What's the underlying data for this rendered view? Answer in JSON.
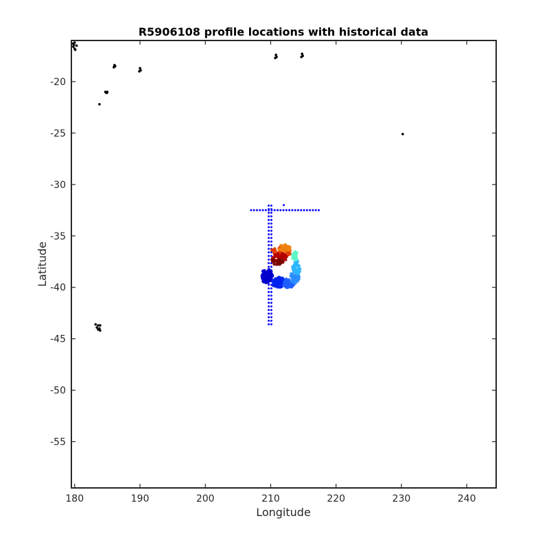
{
  "chart_data": {
    "type": "scatter",
    "title": "R5906108 profile locations with historical data",
    "xlabel": "Longitude",
    "ylabel": "Latitude",
    "xlim": [
      179.5,
      244.5
    ],
    "ylim": [
      -59.5,
      -16
    ],
    "xticks": [
      180,
      190,
      200,
      210,
      220,
      230,
      240
    ],
    "yticks": [
      -55,
      -50,
      -45,
      -40,
      -35,
      -30,
      -25,
      -20
    ],
    "grid": false,
    "legend": "none",
    "colors": {
      "axis": "#262626",
      "land": "#000000",
      "historical": "#0000ff",
      "profile_colormap": [
        "#0000aa",
        "#0022ee",
        "#1f66ff",
        "#2bb6ff",
        "#5ff5c8",
        "#f07f10",
        "#e23a00",
        "#b40000",
        "#7a0000"
      ]
    },
    "land_outlines": [
      {
        "name": "island",
        "points": [
          [
            180.0,
            -16.2
          ],
          [
            179.8,
            -16.6
          ],
          [
            180.1,
            -16.9
          ],
          [
            179.9,
            -16.4
          ],
          [
            180.3,
            -16.5
          ],
          [
            180.0,
            -16.8
          ],
          [
            179.7,
            -16.3
          ]
        ]
      },
      {
        "name": "island",
        "points": [
          [
            186.1,
            -18.4
          ],
          [
            186.0,
            -18.6
          ],
          [
            186.2,
            -18.5
          ]
        ]
      },
      {
        "name": "island",
        "points": [
          [
            190.0,
            -18.7
          ],
          [
            189.9,
            -19.0
          ],
          [
            190.1,
            -18.9
          ]
        ]
      },
      {
        "name": "island",
        "points": [
          [
            184.7,
            -21.0
          ],
          [
            185.0,
            -21.0
          ],
          [
            184.9,
            -21.1
          ]
        ]
      },
      {
        "name": "island",
        "points": [
          [
            183.8,
            -22.2
          ]
        ]
      },
      {
        "name": "island",
        "points": [
          [
            210.8,
            -17.4
          ],
          [
            210.7,
            -17.7
          ],
          [
            210.9,
            -17.6
          ]
        ]
      },
      {
        "name": "island",
        "points": [
          [
            214.8,
            -17.3
          ],
          [
            214.7,
            -17.6
          ],
          [
            214.9,
            -17.5
          ]
        ]
      },
      {
        "name": "island",
        "points": [
          [
            230.2,
            -25.1
          ]
        ]
      },
      {
        "name": "island",
        "points": [
          [
            183.2,
            -43.6
          ],
          [
            183.6,
            -43.7
          ],
          [
            183.9,
            -43.7
          ],
          [
            183.4,
            -43.9
          ],
          [
            183.8,
            -44.0
          ],
          [
            183.9,
            -44.2
          ],
          [
            183.6,
            -44.1
          ]
        ]
      }
    ],
    "historical_series": {
      "name": "historical",
      "horizontal_line": {
        "lat": -32.5,
        "lon_min": 207.0,
        "lon_max": 217.4,
        "step": 0.45
      },
      "vertical_lines": [
        {
          "lon": 209.7,
          "lat_min": -43.6,
          "lat_max": -32.0,
          "step": 0.35
        },
        {
          "lon": 210.1,
          "lat_min": -43.6,
          "lat_max": -32.0,
          "step": 0.35
        }
      ],
      "extra_points": [
        [
          212.0,
          -32.0
        ]
      ]
    },
    "profile_series": {
      "name": "profiles",
      "clusters": [
        {
          "lon": 209.4,
          "lat": -38.9,
          "spread_lon": 0.9,
          "spread_lat": 0.7,
          "count": 70,
          "color": "#0000cc"
        },
        {
          "lon": 211.2,
          "lat": -39.5,
          "spread_lon": 1.1,
          "spread_lat": 0.5,
          "count": 60,
          "color": "#0022ee"
        },
        {
          "lon": 212.7,
          "lat": -39.6,
          "spread_lon": 0.9,
          "spread_lat": 0.45,
          "count": 50,
          "color": "#1f5fff"
        },
        {
          "lon": 213.7,
          "lat": -39.0,
          "spread_lon": 0.7,
          "spread_lat": 0.6,
          "count": 40,
          "color": "#2a8cff"
        },
        {
          "lon": 214.0,
          "lat": -38.0,
          "spread_lon": 0.7,
          "spread_lat": 0.7,
          "count": 40,
          "color": "#2bb6ff"
        },
        {
          "lon": 213.7,
          "lat": -36.9,
          "spread_lon": 0.4,
          "spread_lat": 0.5,
          "count": 25,
          "color": "#5ff5c8"
        },
        {
          "lon": 211.6,
          "lat": -36.5,
          "spread_lon": 1.5,
          "spread_lat": 0.55,
          "count": 55,
          "color": "#e23a00"
        },
        {
          "lon": 212.2,
          "lat": -36.2,
          "spread_lon": 1.0,
          "spread_lat": 0.35,
          "count": 30,
          "color": "#f07f10"
        },
        {
          "lon": 211.3,
          "lat": -37.1,
          "spread_lon": 1.2,
          "spread_lat": 0.45,
          "count": 45,
          "color": "#b40000"
        },
        {
          "lon": 211.0,
          "lat": -37.5,
          "spread_lon": 1.1,
          "spread_lat": 0.3,
          "count": 25,
          "color": "#7a0000"
        }
      ]
    }
  }
}
